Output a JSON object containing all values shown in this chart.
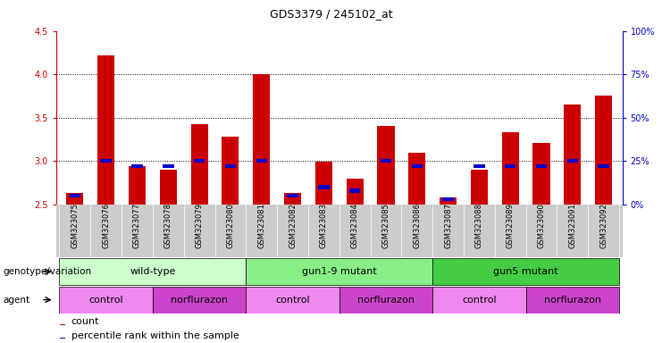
{
  "title": "GDS3379 / 245102_at",
  "samples": [
    "GSM323075",
    "GSM323076",
    "GSM323077",
    "GSM323078",
    "GSM323079",
    "GSM323080",
    "GSM323081",
    "GSM323082",
    "GSM323083",
    "GSM323084",
    "GSM323085",
    "GSM323086",
    "GSM323087",
    "GSM323088",
    "GSM323089",
    "GSM323090",
    "GSM323091",
    "GSM323092"
  ],
  "count_values": [
    2.63,
    4.22,
    2.94,
    2.9,
    3.42,
    3.28,
    4.0,
    2.63,
    2.99,
    2.8,
    3.4,
    3.1,
    2.58,
    2.9,
    3.33,
    3.21,
    3.65,
    3.75
  ],
  "percentile_values": [
    5,
    25,
    22,
    22,
    25,
    22,
    25,
    5,
    10,
    8,
    25,
    22,
    3,
    22,
    22,
    22,
    25,
    22
  ],
  "count_base": 2.5,
  "ylim_left": [
    2.5,
    4.5
  ],
  "ylim_right": [
    0,
    100
  ],
  "yticks_left": [
    2.5,
    3.0,
    3.5,
    4.0,
    4.5
  ],
  "yticks_right": [
    0,
    25,
    50,
    75,
    100
  ],
  "bar_color": "#cc0000",
  "percentile_color": "#0000cc",
  "genotype_groups": [
    {
      "label": "wild-type",
      "start": 0,
      "end": 6,
      "color": "#ccffcc"
    },
    {
      "label": "gun1-9 mutant",
      "start": 6,
      "end": 12,
      "color": "#88ee88"
    },
    {
      "label": "gun5 mutant",
      "start": 12,
      "end": 18,
      "color": "#44cc44"
    }
  ],
  "agent_groups": [
    {
      "label": "control",
      "start": 0,
      "end": 3,
      "color": "#ee88ee"
    },
    {
      "label": "norflurazon",
      "start": 3,
      "end": 6,
      "color": "#cc44cc"
    },
    {
      "label": "control",
      "start": 6,
      "end": 9,
      "color": "#ee88ee"
    },
    {
      "label": "norflurazon",
      "start": 9,
      "end": 12,
      "color": "#cc44cc"
    },
    {
      "label": "control",
      "start": 12,
      "end": 15,
      "color": "#ee88ee"
    },
    {
      "label": "norflurazon",
      "start": 15,
      "end": 18,
      "color": "#cc44cc"
    }
  ],
  "bar_width": 0.55,
  "tick_color_left": "#cc0000",
  "tick_color_right": "#0000cc",
  "background_color": "#ffffff",
  "title_fontsize": 9,
  "sample_fontsize": 6,
  "annotation_fontsize": 8,
  "legend_fontsize": 8
}
